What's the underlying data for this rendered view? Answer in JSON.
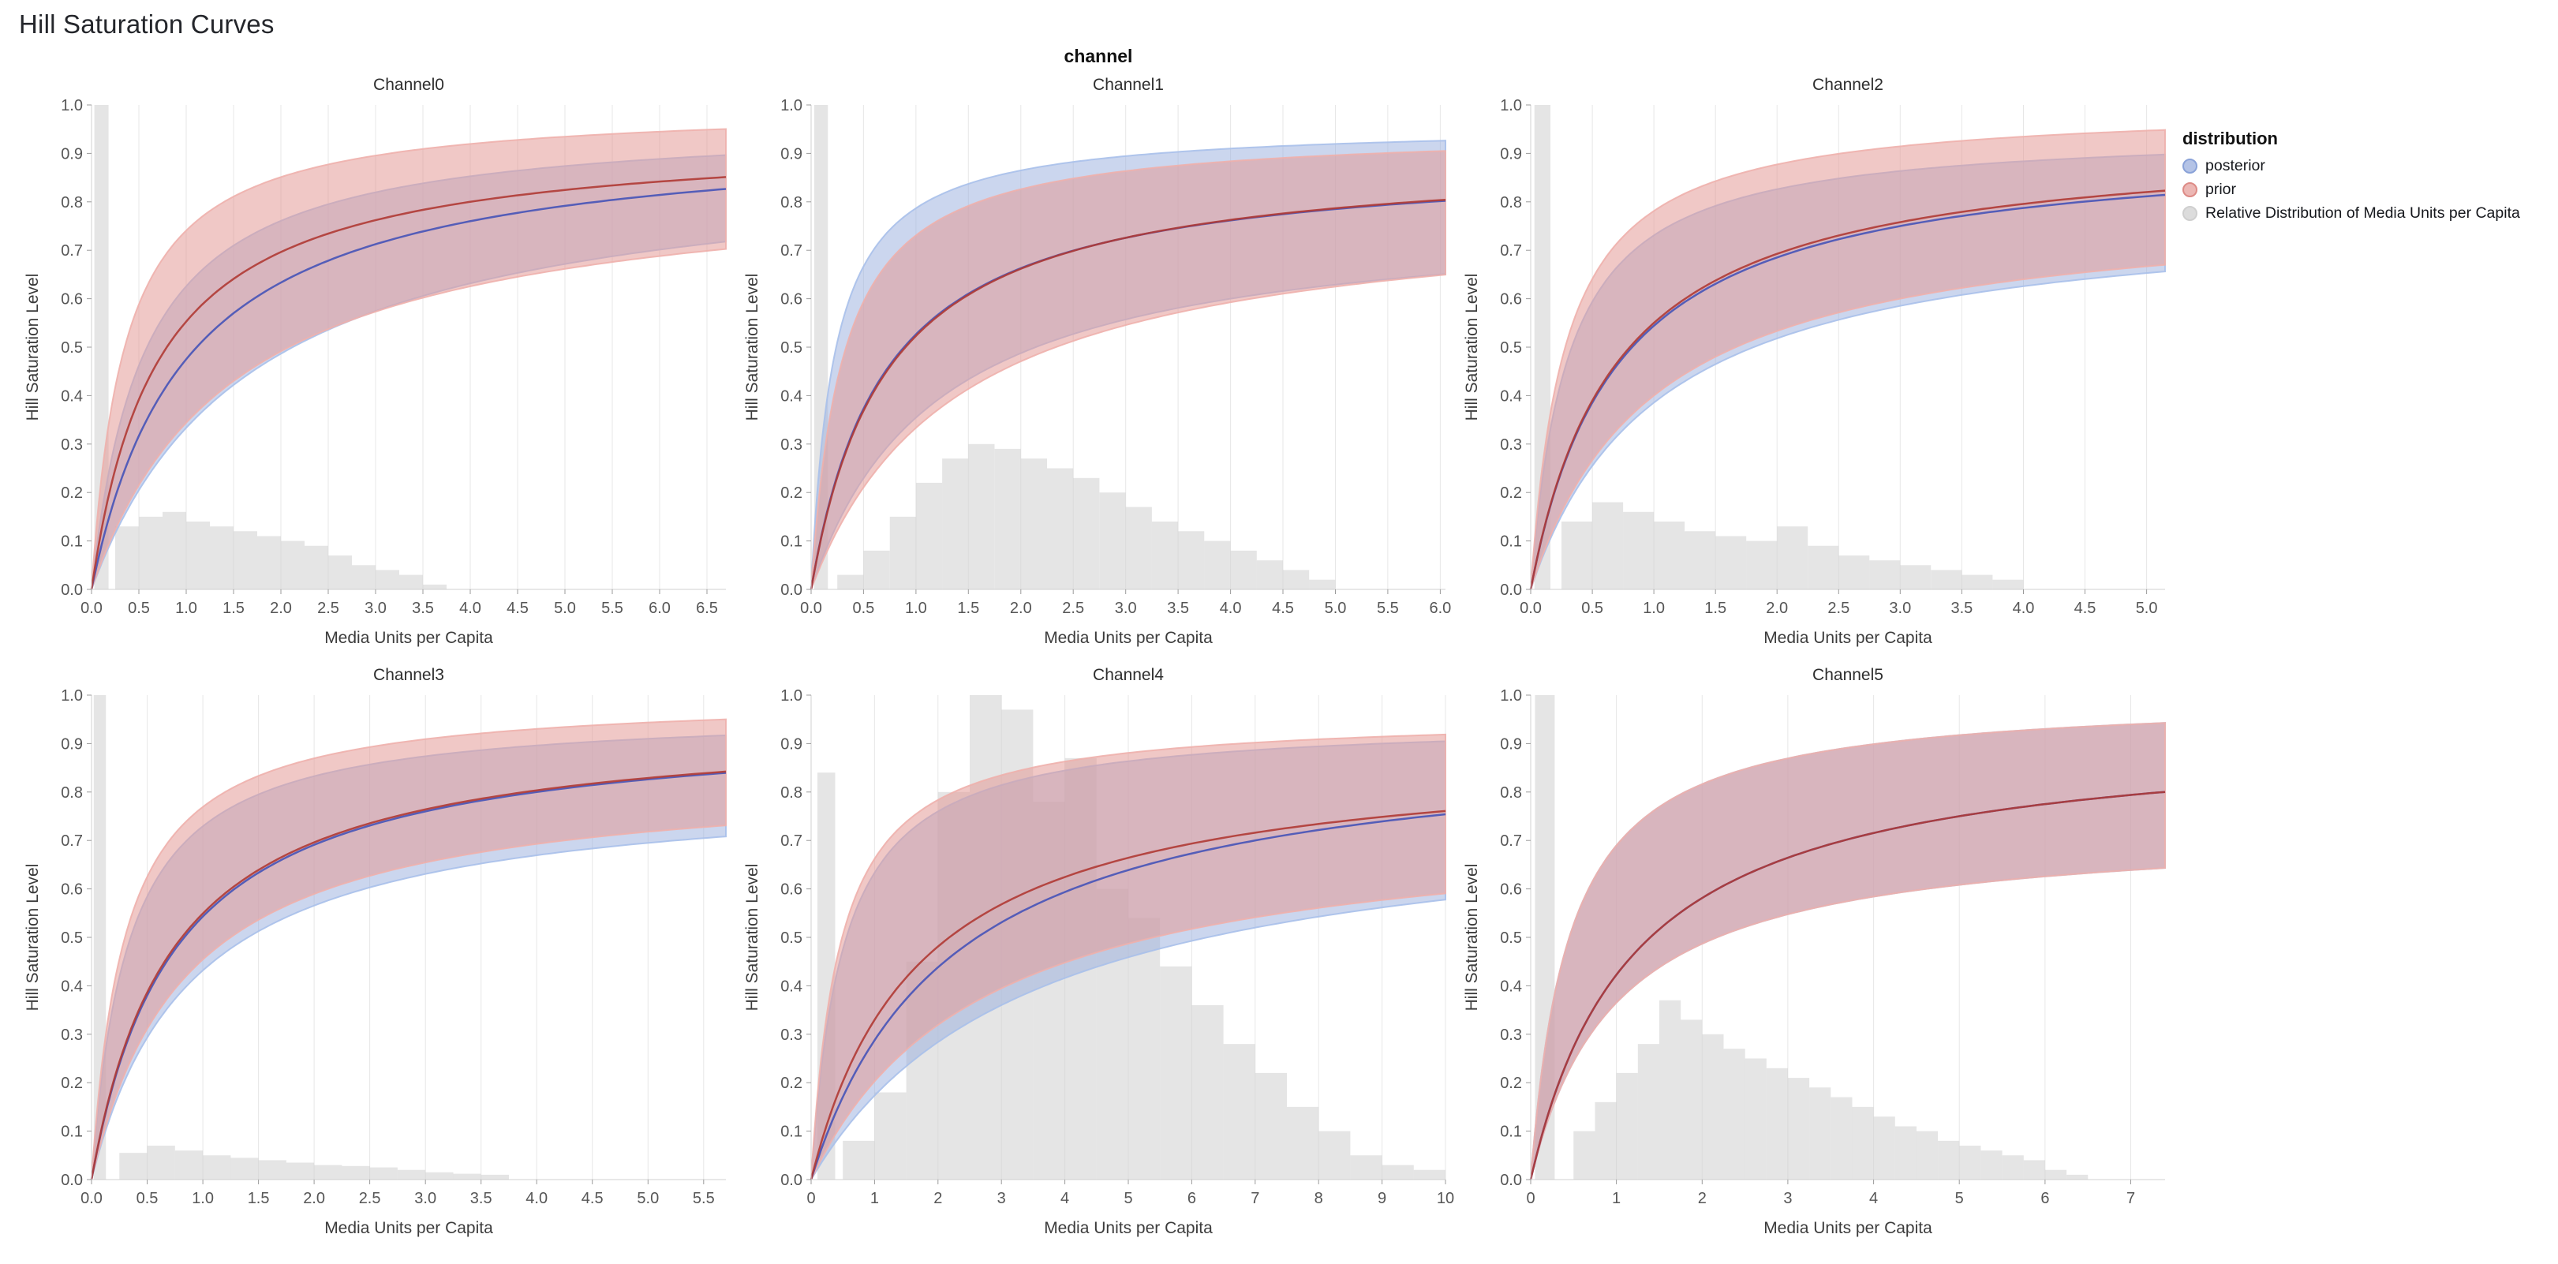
{
  "page": {
    "title": "Hill Saturation Curves",
    "facet_label": "channel"
  },
  "legend": {
    "title": "distribution",
    "entries": [
      {
        "label": "posterior",
        "fill": "rgba(140,163,217,0.65)",
        "stroke": "#8aa2d8"
      },
      {
        "label": "prior",
        "fill": "rgba(228,152,148,0.70)",
        "stroke": "#dd8b86"
      },
      {
        "label": "Relative Distribution of Media Units per Capita",
        "fill": "rgba(214,214,214,0.85)",
        "stroke": "#cfcfcf"
      }
    ]
  },
  "colors": {
    "posterior_line": "#3d4db7",
    "posterior_band": "#98aede",
    "posterior_band_edge": "#a9c0ea",
    "prior_line": "#b03a34",
    "prior_band": "#e49a97",
    "prior_band_edge": "#eeb0ac",
    "histogram": "#cfcfcf",
    "grid": "#e7e7e7",
    "axis_domain": "#d0d0d0",
    "tick_mark": "#9b9b9b",
    "tick_text": "#565656",
    "axis_title": "#3c3c3c",
    "subplot_title": "#2e2e2e"
  },
  "chart_data": {
    "type": "line",
    "subtype": "hill-saturation-curves-with-credible-bands-and-media-histogram",
    "title": "Hill Saturation Curves",
    "facet_label": "channel",
    "xlabel": "Media Units per Capita",
    "ylabel": "Hill Saturation Level",
    "ylim": [
      0,
      1
    ],
    "y_ticks": [
      "0.0",
      "0.1",
      "0.2",
      "0.3",
      "0.4",
      "0.5",
      "0.6",
      "0.7",
      "0.8",
      "0.9",
      "1.0"
    ],
    "grid": "vertical-only",
    "legend_position": "right",
    "curve_model": "y = ymax * x / (x + k)  (Hill curve; mid = median line, lo/hi = credible band edges)",
    "channels": [
      {
        "name": "Channel0",
        "x_max": 6.7,
        "x_ticks": [
          "0.0",
          "0.5",
          "1.0",
          "1.5",
          "2.0",
          "2.5",
          "3.0",
          "3.5",
          "4.0",
          "4.5",
          "5.0",
          "5.5",
          "6.0",
          "6.5"
        ],
        "posterior": {
          "mid": {
            "ymax": 0.95,
            "k": 1.0
          },
          "lo": {
            "ymax": 0.9,
            "k": 1.7
          },
          "hi": {
            "ymax": 0.97,
            "k": 0.55
          }
        },
        "prior": {
          "mid": {
            "ymax": 0.94,
            "k": 0.7
          },
          "lo": {
            "ymax": 0.86,
            "k": 1.5
          },
          "hi": {
            "ymax": 1.0,
            "k": 0.35
          }
        },
        "histogram": {
          "spike": {
            "x0": 0.03,
            "x1": 0.18,
            "h": 1.0
          },
          "start": 0.25,
          "bin_width": 0.25,
          "heights": [
            0.13,
            0.15,
            0.16,
            0.14,
            0.13,
            0.12,
            0.11,
            0.1,
            0.09,
            0.07,
            0.05,
            0.04,
            0.03,
            0.01
          ]
        }
      },
      {
        "name": "Channel1",
        "x_max": 6.05,
        "x_ticks": [
          "0.0",
          "0.5",
          "1.0",
          "1.5",
          "2.0",
          "2.5",
          "3.0",
          "3.5",
          "4.0",
          "4.5",
          "5.0",
          "5.5",
          "6.0"
        ],
        "posterior": {
          "mid": {
            "ymax": 0.895,
            "k": 0.7
          },
          "lo": {
            "ymax": 0.78,
            "k": 1.2
          },
          "hi": {
            "ymax": 0.96,
            "k": 0.22
          }
        },
        "prior": {
          "mid": {
            "ymax": 0.9,
            "k": 0.72
          },
          "lo": {
            "ymax": 0.8,
            "k": 1.4
          },
          "hi": {
            "ymax": 0.95,
            "k": 0.3
          }
        },
        "histogram": {
          "spike": {
            "x0": 0.03,
            "x1": 0.16,
            "h": 1.0
          },
          "start": 0.25,
          "bin_width": 0.25,
          "heights": [
            0.03,
            0.08,
            0.15,
            0.22,
            0.27,
            0.3,
            0.29,
            0.27,
            0.25,
            0.23,
            0.2,
            0.17,
            0.14,
            0.12,
            0.1,
            0.08,
            0.06,
            0.04,
            0.02
          ]
        }
      },
      {
        "name": "Channel2",
        "x_max": 5.15,
        "x_ticks": [
          "0.0",
          "0.5",
          "1.0",
          "1.5",
          "2.0",
          "2.5",
          "3.0",
          "3.5",
          "4.0",
          "4.5",
          "5.0"
        ],
        "posterior": {
          "mid": {
            "ymax": 0.925,
            "k": 0.7
          },
          "lo": {
            "ymax": 0.79,
            "k": 1.05
          },
          "hi": {
            "ymax": 0.95,
            "k": 0.3
          }
        },
        "prior": {
          "mid": {
            "ymax": 0.935,
            "k": 0.7
          },
          "lo": {
            "ymax": 0.8,
            "k": 1.0
          },
          "hi": {
            "ymax": 1.0,
            "k": 0.28
          }
        },
        "histogram": {
          "spike": {
            "x0": 0.03,
            "x1": 0.16,
            "h": 1.0
          },
          "start": 0.25,
          "bin_width": 0.25,
          "heights": [
            0.14,
            0.18,
            0.16,
            0.14,
            0.12,
            0.11,
            0.1,
            0.13,
            0.09,
            0.07,
            0.06,
            0.05,
            0.04,
            0.03,
            0.02
          ]
        }
      },
      {
        "name": "Channel3",
        "x_max": 5.7,
        "x_ticks": [
          "0.0",
          "0.5",
          "1.0",
          "1.5",
          "2.0",
          "2.5",
          "3.0",
          "3.5",
          "4.0",
          "4.5",
          "5.0",
          "5.5"
        ],
        "posterior": {
          "mid": {
            "ymax": 0.95,
            "k": 0.75
          },
          "lo": {
            "ymax": 0.82,
            "k": 0.9
          },
          "hi": {
            "ymax": 0.97,
            "k": 0.33
          }
        },
        "prior": {
          "mid": {
            "ymax": 0.95,
            "k": 0.73
          },
          "lo": {
            "ymax": 0.84,
            "k": 0.85
          },
          "hi": {
            "ymax": 1.0,
            "k": 0.3
          }
        },
        "histogram": {
          "spike": {
            "x0": 0.02,
            "x1": 0.13,
            "h": 1.0
          },
          "start": 0.25,
          "bin_width": 0.25,
          "heights": [
            0.055,
            0.07,
            0.06,
            0.05,
            0.045,
            0.04,
            0.035,
            0.03,
            0.028,
            0.025,
            0.02,
            0.015,
            0.012,
            0.01
          ]
        }
      },
      {
        "name": "Channel4",
        "x_max": 10.0,
        "x_ticks": [
          "0",
          "1",
          "2",
          "3",
          "4",
          "5",
          "6",
          "7",
          "8",
          "9",
          "10"
        ],
        "posterior": {
          "mid": {
            "ymax": 0.92,
            "k": 2.2
          },
          "lo": {
            "ymax": 0.78,
            "k": 3.5
          },
          "hi": {
            "ymax": 0.95,
            "k": 0.5
          }
        },
        "prior": {
          "mid": {
            "ymax": 0.89,
            "k": 1.7
          },
          "lo": {
            "ymax": 0.75,
            "k": 2.7
          },
          "hi": {
            "ymax": 0.96,
            "k": 0.45
          }
        },
        "histogram": {
          "spike": {
            "x0": 0.1,
            "x1": 0.38,
            "h": 0.84
          },
          "start": 0.5,
          "bin_width": 0.5,
          "heights": [
            0.08,
            0.18,
            0.45,
            0.8,
            1.0,
            0.97,
            0.78,
            0.87,
            0.6,
            0.54,
            0.44,
            0.36,
            0.28,
            0.22,
            0.15,
            0.1,
            0.05,
            0.03,
            0.02
          ]
        }
      },
      {
        "name": "Channel5",
        "x_max": 7.4,
        "x_ticks": [
          "0",
          "1",
          "2",
          "3",
          "4",
          "5",
          "6",
          "7"
        ],
        "posterior": {
          "mid": {
            "ymax": 0.93,
            "k": 1.2
          },
          "lo": {
            "ymax": 0.73,
            "k": 1.0
          },
          "hi": {
            "ymax": 1.0,
            "k": 0.45
          }
        },
        "prior": {
          "mid": {
            "ymax": 0.93,
            "k": 1.2
          },
          "lo": {
            "ymax": 0.73,
            "k": 1.0
          },
          "hi": {
            "ymax": 1.0,
            "k": 0.45
          }
        },
        "histogram": {
          "spike": {
            "x0": 0.05,
            "x1": 0.28,
            "h": 1.0
          },
          "start": 0.5,
          "bin_width": 0.25,
          "heights": [
            0.1,
            0.16,
            0.22,
            0.28,
            0.37,
            0.33,
            0.3,
            0.27,
            0.25,
            0.23,
            0.21,
            0.19,
            0.17,
            0.15,
            0.13,
            0.11,
            0.1,
            0.08,
            0.07,
            0.06,
            0.05,
            0.04,
            0.02,
            0.01
          ]
        }
      }
    ]
  }
}
